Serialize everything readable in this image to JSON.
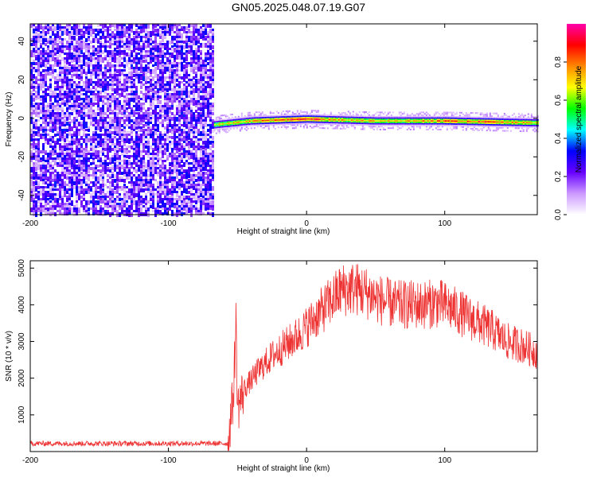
{
  "title": "GN05.2025.048.07.19.G07",
  "chart_data": [
    {
      "type": "heatmap",
      "xlabel": "Height of straight line (km)",
      "ylabel": "Frequency (Hz)",
      "xlim": [
        -200,
        167
      ],
      "ylim": [
        -50,
        49
      ],
      "xticks": [
        -200,
        -100,
        0,
        100
      ],
      "yticks": [
        -40,
        -20,
        0,
        20,
        40
      ],
      "noise_region": {
        "x_range": [
          -200,
          -67
        ],
        "y_range": [
          -50,
          49
        ],
        "amplitude_range": [
          0.05,
          0.35
        ]
      },
      "signal_trace": {
        "x_start": -67,
        "x_end": 167,
        "center_freq": [
          [
            -67,
            -3
          ],
          [
            -40,
            -1
          ],
          [
            0,
            0
          ],
          [
            50,
            -1
          ],
          [
            100,
            -1
          ],
          [
            167,
            -2
          ]
        ],
        "peak_amplitude": [
          [
            -67,
            0.7
          ],
          [
            -40,
            0.75
          ],
          [
            -20,
            0.85
          ],
          [
            0,
            0.9
          ],
          [
            20,
            0.75
          ],
          [
            60,
            0.7
          ],
          [
            100,
            0.8
          ],
          [
            130,
            0.85
          ],
          [
            167,
            0.7
          ]
        ]
      },
      "colorbar": {
        "label": "Normalized spectral amplitude",
        "range": [
          0,
          1
        ],
        "ticks": [
          0.0,
          0.2,
          0.4,
          0.6,
          0.8
        ],
        "tick_labels": [
          "0.0",
          "0.2",
          "0.4",
          "0.6",
          "0.8"
        ],
        "colors": [
          "#ffffff",
          "#cc99ff",
          "#6600ff",
          "#0000ff",
          "#00ffff",
          "#00ff00",
          "#ffff00",
          "#ff8800",
          "#ff0000",
          "#ff00aa"
        ]
      }
    },
    {
      "type": "line",
      "xlabel": "Height of straight line (km)",
      "ylabel": "SNR (10 * v/v)",
      "xlim": [
        -200,
        167
      ],
      "ylim": [
        0,
        5200
      ],
      "xticks": [
        -200,
        -100,
        0,
        100
      ],
      "yticks": [
        1000,
        2000,
        3000,
        4000,
        5000
      ],
      "series": [
        {
          "color": "#ee3333",
          "envelope": [
            [
              -200,
              220
            ],
            [
              -67,
              220
            ],
            [
              -57,
              220
            ],
            [
              -55,
              900
            ],
            [
              -53,
              1500
            ],
            [
              -51,
              3600
            ],
            [
              -50,
              1200
            ],
            [
              -45,
              1700
            ],
            [
              -35,
              2200
            ],
            [
              -25,
              2600
            ],
            [
              -15,
              2900
            ],
            [
              -5,
              3200
            ],
            [
              5,
              3600
            ],
            [
              15,
              4000
            ],
            [
              25,
              4400
            ],
            [
              35,
              4450
            ],
            [
              45,
              4300
            ],
            [
              55,
              4100
            ],
            [
              65,
              4000
            ],
            [
              75,
              4000
            ],
            [
              85,
              4000
            ],
            [
              95,
              4050
            ],
            [
              105,
              3900
            ],
            [
              115,
              3700
            ],
            [
              125,
              3500
            ],
            [
              135,
              3300
            ],
            [
              145,
              3000
            ],
            [
              155,
              2900
            ],
            [
              167,
              2700
            ]
          ]
        }
      ]
    }
  ]
}
